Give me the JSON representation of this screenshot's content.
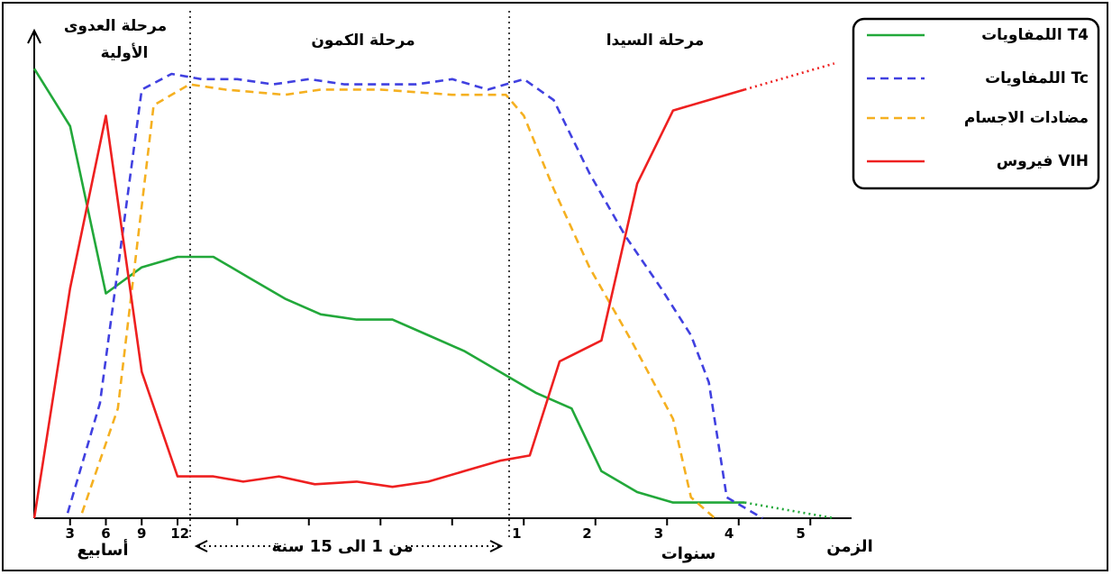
{
  "chart_data": {
    "type": "line",
    "title": "",
    "phases": [
      {
        "name": "primo",
        "label": "مرحلة العدوى الأولية"
      },
      {
        "name": "latency",
        "label": "مرحلة الكمون"
      },
      {
        "name": "aids",
        "label": "مرحلة السيدا"
      }
    ],
    "x_label": "الزمن",
    "x_ticks_weeks": [
      "3",
      "6",
      "9",
      "12"
    ],
    "x_unit_weeks": "أسابيع",
    "x_middle_label": "من 1 الى 15 سنة",
    "x_ticks_years": [
      "1",
      "2",
      "3",
      "4",
      "5"
    ],
    "x_unit_years": "سنوات",
    "legend_position": "top-right",
    "series": [
      {
        "name": "اللمفاويات T4",
        "color": "#22a83a",
        "style": "solid",
        "points": [
          [
            0,
            0.86
          ],
          [
            3,
            0.75
          ],
          [
            6,
            0.43
          ],
          [
            9,
            0.48
          ],
          [
            12,
            0.5
          ],
          [
            15,
            0.5
          ],
          [
            18,
            0.46
          ],
          [
            21,
            0.42
          ],
          [
            24,
            0.39
          ],
          [
            27,
            0.38
          ],
          [
            30,
            0.38
          ],
          [
            33,
            0.35
          ],
          [
            36,
            0.32
          ],
          [
            39,
            0.28
          ],
          [
            42,
            0.24
          ],
          [
            45,
            0.21
          ],
          [
            47.5,
            0.09
          ],
          [
            50.5,
            0.05
          ],
          [
            53.5,
            0.03
          ],
          [
            56.5,
            0.03
          ],
          [
            59.5,
            0.03
          ]
        ],
        "extension": [
          [
            59.5,
            0.03
          ],
          [
            67,
            0
          ]
        ]
      },
      {
        "name": "اللمفاويات Tc",
        "color": "#4040e0",
        "style": "dashed",
        "points": [
          [
            2.8,
            0.01
          ],
          [
            5.5,
            0.22
          ],
          [
            9,
            0.82
          ],
          [
            11.5,
            0.85
          ],
          [
            14,
            0.84
          ],
          [
            17,
            0.84
          ],
          [
            20,
            0.83
          ],
          [
            23,
            0.84
          ],
          [
            26,
            0.83
          ],
          [
            29,
            0.83
          ],
          [
            32,
            0.83
          ],
          [
            35,
            0.84
          ],
          [
            38,
            0.82
          ],
          [
            41,
            0.84
          ],
          [
            43.5,
            0.8
          ],
          [
            46.5,
            0.66
          ],
          [
            49.5,
            0.54
          ],
          [
            52.5,
            0.44
          ],
          [
            55,
            0.35
          ],
          [
            56.5,
            0.26
          ],
          [
            58,
            0.04
          ],
          [
            61,
            0
          ]
        ]
      },
      {
        "name": "مضادات الاجسام",
        "color": "#f5b020",
        "style": "dashed",
        "points": [
          [
            4,
            0.01
          ],
          [
            7,
            0.21
          ],
          [
            10,
            0.79
          ],
          [
            13,
            0.83
          ],
          [
            16,
            0.82
          ],
          [
            21,
            0.81
          ],
          [
            24,
            0.82
          ],
          [
            29,
            0.82
          ],
          [
            35,
            0.81
          ],
          [
            39.5,
            0.81
          ],
          [
            41,
            0.77
          ],
          [
            43.5,
            0.63
          ],
          [
            46.5,
            0.48
          ],
          [
            50,
            0.34
          ],
          [
            53.5,
            0.19
          ],
          [
            55,
            0.04
          ],
          [
            57,
            0
          ]
        ]
      },
      {
        "name": "فيروس VIH",
        "color": "#ee2020",
        "style": "solid",
        "points": [
          [
            0,
            0
          ],
          [
            3,
            0.44
          ],
          [
            6,
            0.77
          ],
          [
            9,
            0.28
          ],
          [
            12,
            0.08
          ],
          [
            15,
            0.08
          ],
          [
            17.5,
            0.07
          ],
          [
            20.5,
            0.08
          ],
          [
            23.5,
            0.065
          ],
          [
            27,
            0.07
          ],
          [
            30,
            0.06
          ],
          [
            33,
            0.07
          ],
          [
            36,
            0.09
          ],
          [
            39,
            0.11
          ],
          [
            41.5,
            0.12
          ],
          [
            44,
            0.3
          ],
          [
            47.5,
            0.34
          ],
          [
            50.5,
            0.64
          ],
          [
            53.5,
            0.78
          ],
          [
            56.5,
            0.8
          ],
          [
            59.5,
            0.82
          ]
        ],
        "extension": [
          [
            59.5,
            0.82
          ],
          [
            67,
            0.87
          ]
        ]
      }
    ]
  }
}
